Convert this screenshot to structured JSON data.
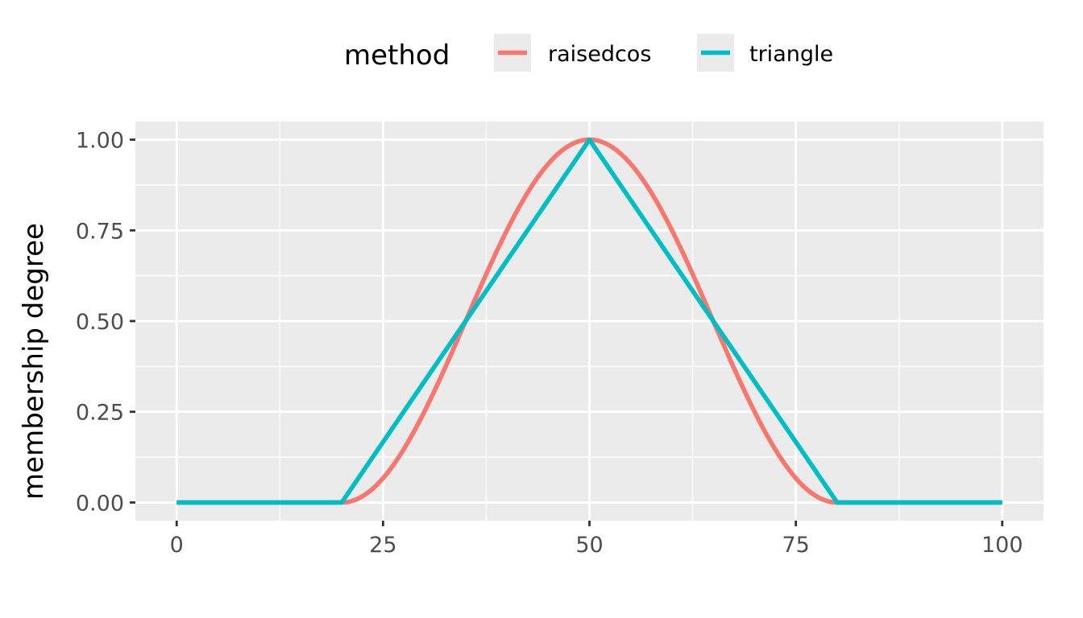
{
  "chart_data": {
    "type": "line",
    "title": "",
    "xlabel": "",
    "ylabel": "membership degree",
    "xlim": [
      -5,
      105
    ],
    "ylim": [
      -0.05,
      1.05
    ],
    "x_ticks": [
      0,
      25,
      50,
      75,
      100
    ],
    "x_tick_labels": [
      "0",
      "25",
      "50",
      "75",
      "100"
    ],
    "x_minor_ticks": [
      12.5,
      37.5,
      62.5,
      87.5
    ],
    "y_ticks": [
      0,
      0.25,
      0.5,
      0.75,
      1
    ],
    "y_tick_labels": [
      "0.00",
      "0.25",
      "0.50",
      "0.75",
      "1.00"
    ],
    "y_minor_ticks": [
      0.125,
      0.375,
      0.625,
      0.875
    ],
    "grid": true,
    "legend": {
      "title": "method",
      "position": "top"
    },
    "series": [
      {
        "name": "raisedcos",
        "color": "#F8766D",
        "shape": "raised-cosine",
        "x": [
          0,
          20,
          22.5,
          25,
          27.5,
          30,
          32.5,
          35,
          37.5,
          40,
          42.5,
          45,
          47.5,
          50,
          52.5,
          55,
          57.5,
          60,
          62.5,
          65,
          67.5,
          70,
          72.5,
          75,
          77.5,
          80,
          100
        ],
        "y": [
          0,
          0,
          0.017,
          0.067,
          0.146,
          0.25,
          0.37,
          0.5,
          0.629,
          0.75,
          0.854,
          0.933,
          0.983,
          1,
          0.983,
          0.933,
          0.854,
          0.75,
          0.629,
          0.5,
          0.37,
          0.25,
          0.146,
          0.067,
          0.017,
          0,
          0
        ]
      },
      {
        "name": "triangle",
        "color": "#00BFC4",
        "shape": "triangular",
        "x": [
          0,
          20,
          50,
          80,
          100
        ],
        "y": [
          0,
          0,
          1,
          0,
          0
        ]
      }
    ]
  }
}
